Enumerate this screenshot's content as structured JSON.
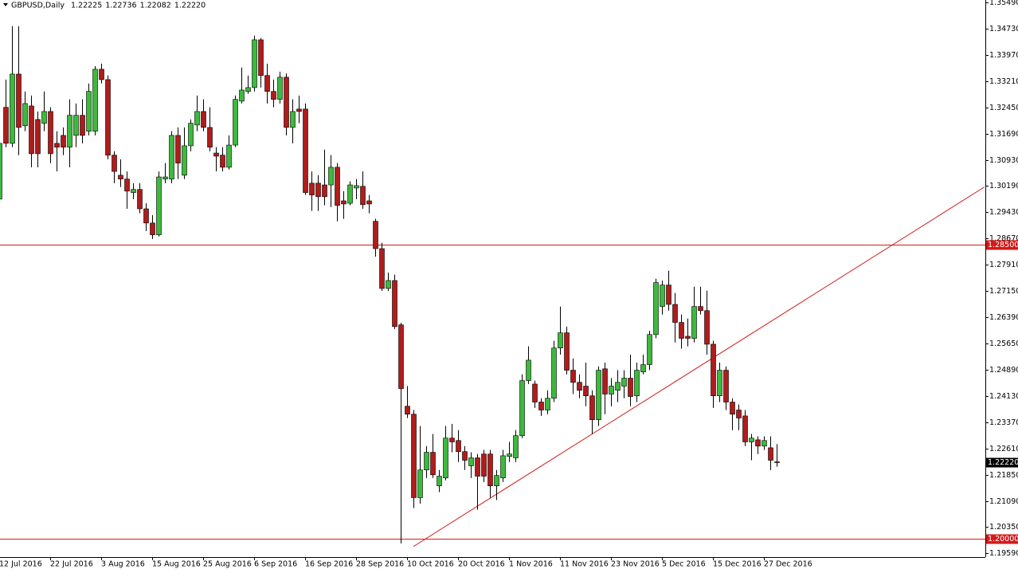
{
  "chart_data": {
    "type": "candlestick",
    "title": "GBPUSD,Daily",
    "title_values": [
      "1.22225",
      "1.22736",
      "1.22082",
      "1.22220"
    ],
    "categories": [
      "12 Jul 2016",
      null,
      null,
      null,
      null,
      null,
      null,
      null,
      "22 Jul 2016",
      null,
      null,
      null,
      null,
      null,
      null,
      null,
      "3 Aug 2016",
      null,
      null,
      null,
      null,
      null,
      null,
      null,
      "15 Aug 2016",
      null,
      null,
      null,
      null,
      null,
      null,
      null,
      "25 Aug 2016",
      null,
      null,
      null,
      null,
      null,
      null,
      null,
      "6 Sep 2016",
      null,
      null,
      null,
      null,
      null,
      null,
      null,
      "16 Sep 2016",
      null,
      null,
      null,
      null,
      null,
      null,
      null,
      "28 Sep 2016",
      null,
      null,
      null,
      null,
      null,
      null,
      null,
      "10 Oct 2016",
      null,
      null,
      null,
      null,
      null,
      null,
      null,
      "20 Oct 2016",
      null,
      null,
      null,
      null,
      null,
      null,
      null,
      "1 Nov 2016",
      null,
      null,
      null,
      null,
      null,
      null,
      null,
      "11 Nov 2016",
      null,
      null,
      null,
      null,
      null,
      null,
      null,
      "23 Nov 2016",
      null,
      null,
      null,
      null,
      null,
      null,
      null,
      "5 Dec 2016",
      null,
      null,
      null,
      null,
      null,
      null,
      null,
      "15 Dec 2016",
      null,
      null,
      null,
      null,
      null,
      null,
      null,
      "27 Dec 2016",
      null,
      null
    ],
    "open": [
      1.2981,
      1.3246,
      1.3142,
      1.3342,
      1.3193,
      1.325,
      1.3211,
      1.32,
      1.3234,
      1.3142,
      1.3165,
      1.3131,
      1.3165,
      1.3223,
      1.3177,
      1.3177,
      1.3356,
      1.3326,
      1.3108,
      1.305,
      1.3039,
      1.3,
      1.3009,
      1.2953,
      1.2912,
      1.2878,
      1.3039,
      1.3039,
      1.3165,
      1.305,
      1.3135,
      1.3195,
      1.3234,
      1.3188,
      1.3114,
      1.3108,
      1.3073,
      1.3137,
      1.3264,
      1.3292,
      1.3303,
      1.3441,
      1.3338,
      1.3292,
      1.3269,
      1.3333,
      1.3188,
      1.3241,
      1.3241,
      1.3027,
      1.3027,
      1.3022,
      1.3022,
      1.3073,
      1.2976,
      1.2969,
      1.3013,
      1.3018,
      1.2976,
      1.2917,
      1.2838,
      1.2723,
      1.2746,
      1.2618,
      1.2383,
      1.236,
      1.2119,
      1.2199,
      1.225,
      1.2153,
      1.2176,
      1.2291,
      1.2284,
      1.2252,
      1.2211,
      1.2234,
      1.2245,
      1.2245,
      1.2153,
      1.2176,
      1.2238,
      1.2234,
      1.2298,
      1.2457,
      1.2447,
      1.2395,
      1.2372,
      1.2406,
      1.2551,
      1.2595,
      1.2487,
      1.2452,
      1.2441,
      1.2413,
      1.2344,
      1.2491,
      1.2418,
      1.2429,
      1.2441,
      1.2464,
      1.2413,
      1.2482,
      1.2503,
      1.259,
      1.2671,
      1.2733,
      1.2677,
      1.2625,
      1.2585,
      1.2579,
      1.2671,
      1.2659,
      1.2562,
      1.2413,
      1.2487,
      1.2395,
      1.2372,
      1.2355,
      1.228,
      1.2286,
      1.2268,
      1.2263,
      1.22225
    ],
    "high": [
      1.3154,
      1.3326,
      1.348,
      1.348,
      1.3292,
      1.328,
      1.3234,
      1.3292,
      1.3246,
      1.3177,
      1.3188,
      1.3269,
      1.3257,
      1.3269,
      1.3315,
      1.3365,
      1.3372,
      1.3338,
      1.3119,
      1.3096,
      1.3061,
      1.3027,
      1.3027,
      1.2969,
      1.2935,
      1.3061,
      1.3085,
      1.3177,
      1.3188,
      1.3188,
      1.3211,
      1.328,
      1.3269,
      1.3246,
      1.3131,
      1.3131,
      1.3165,
      1.328,
      1.3361,
      1.3338,
      1.3453,
      1.3446,
      1.3372,
      1.3326,
      1.3349,
      1.3344,
      1.3269,
      1.328,
      1.3257,
      1.3061,
      1.305,
      1.3124,
      1.3108,
      1.3085,
      1.3004,
      1.3032,
      1.3039,
      1.3061,
      1.2993,
      1.2924,
      1.2855,
      1.2769,
      1.2763,
      1.2624,
      1.2441,
      1.2372,
      1.2326,
      1.2268,
      1.2303,
      1.2199,
      1.2326,
      1.2332,
      1.2314,
      1.2268,
      1.225,
      1.2245,
      1.2257,
      1.2257,
      1.2199,
      1.2257,
      1.228,
      1.2314,
      1.2475,
      1.2556,
      1.2457,
      1.2406,
      1.2429,
      1.2572,
      1.2671,
      1.2613,
      1.2521,
      1.2475,
      1.2509,
      1.2429,
      1.2498,
      1.2509,
      1.2464,
      1.2487,
      1.2487,
      1.2532,
      1.2509,
      1.2532,
      1.2601,
      1.2751,
      1.2746,
      1.2774,
      1.271,
      1.2648,
      1.2636,
      1.2728,
      1.2728,
      1.2717,
      1.2572,
      1.2509,
      1.2498,
      1.2406,
      1.2388,
      1.2372,
      1.2303,
      1.2296,
      1.2296,
      1.2296,
      1.22736
    ],
    "low": [
      1.2976,
      1.3131,
      1.3131,
      1.3108,
      1.3177,
      1.3073,
      1.3073,
      1.3177,
      1.3085,
      1.3061,
      1.3108,
      1.3073,
      1.3131,
      1.3142,
      1.3165,
      1.3165,
      1.3315,
      1.3096,
      1.3027,
      1.3016,
      1.2953,
      1.2981,
      1.294,
      1.2889,
      1.2866,
      1.2873,
      1.3027,
      1.3027,
      1.3039,
      1.3039,
      1.3119,
      1.3177,
      1.3177,
      1.3119,
      1.3061,
      1.3061,
      1.3066,
      1.3131,
      1.3257,
      1.3285,
      1.3292,
      1.3303,
      1.3257,
      1.3246,
      1.3257,
      1.3165,
      1.3142,
      1.32,
      1.2993,
      1.2947,
      1.2947,
      1.2963,
      1.2958,
      1.2917,
      1.2924,
      1.2963,
      1.2981,
      1.2953,
      1.294,
      1.2815,
      1.2716,
      1.2716,
      1.2606,
      1.1987,
      1.2349,
      1.2089,
      1.2102,
      1.2176,
      1.2176,
      1.2135,
      1.2169,
      1.225,
      1.2222,
      1.2199,
      1.2176,
      1.2084,
      1.2164,
      1.2119,
      1.2112,
      1.2164,
      1.2222,
      1.2222,
      1.2291,
      1.2447,
      1.2378,
      1.2355,
      1.236,
      1.2395,
      1.2532,
      1.2475,
      1.2418,
      1.2406,
      1.2383,
      1.2303,
      1.2326,
      1.236,
      1.2383,
      1.2395,
      1.2406,
      1.2383,
      1.2395,
      1.2475,
      1.2487,
      1.2579,
      1.2648,
      1.2659,
      1.2567,
      1.2549,
      1.2556,
      1.2567,
      1.2648,
      1.2532,
      1.2378,
      1.2395,
      1.2372,
      1.2314,
      1.2314,
      1.2268,
      1.2227,
      1.2245,
      1.2257,
      1.2199,
      1.22082
    ],
    "close": [
      1.3142,
      1.3142,
      1.3342,
      1.3188,
      1.3257,
      1.3112,
      1.3112,
      1.3234,
      1.3112,
      1.3131,
      1.3131,
      1.3223,
      1.3223,
      1.3165,
      1.3292,
      1.3356,
      1.3326,
      1.3108,
      1.3061,
      1.3039,
      1.3004,
      1.3009,
      1.2953,
      1.2912,
      1.2878,
      1.3045,
      1.3045,
      1.3165,
      1.3085,
      1.3135,
      1.32,
      1.3234,
      1.3188,
      1.3131,
      1.3105,
      1.3073,
      1.3137,
      1.3269,
      1.3296,
      1.3303,
      1.3441,
      1.3338,
      1.3292,
      1.3269,
      1.3333,
      1.3188,
      1.3234,
      1.3234,
      1.3,
      1.2993,
      1.2988,
      1.2988,
      1.3073,
      1.2963,
      1.2967,
      1.3022,
      1.302,
      1.2965,
      1.2967,
      1.2838,
      1.2723,
      1.2746,
      1.2613,
      1.2434,
      1.236,
      1.2119,
      1.2199,
      1.225,
      1.2185,
      1.2181,
      1.2291,
      1.228,
      1.2252,
      1.2227,
      1.2234,
      1.2181,
      1.2181,
      1.2153,
      1.2183,
      1.224,
      1.2245,
      1.2298,
      1.2457,
      1.2516,
      1.2395,
      1.2372,
      1.2406,
      1.2551,
      1.2595,
      1.2487,
      1.2452,
      1.2429,
      1.2413,
      1.2344,
      1.2487,
      1.2418,
      1.2441,
      1.2452,
      1.2464,
      1.2411,
      1.2487,
      1.2503,
      1.259,
      1.274,
      1.2733,
      1.2677,
      1.2625,
      1.2579,
      1.2579,
      1.2671,
      1.2659,
      1.2562,
      1.2413,
      1.2487,
      1.2395,
      1.236,
      1.2349,
      1.228,
      1.2291,
      1.2268,
      1.2284,
      1.2227,
      1.2222
    ],
    "up_color": "#3cba3c",
    "down_color": "#b01c1c",
    "ylim": [
      1.1959,
      1.3549
    ],
    "yticks": [
      {
        "value": 1.3549,
        "label": "1.35490"
      },
      {
        "value": 1.3473,
        "label": "1.34730"
      },
      {
        "value": 1.3397,
        "label": "1.33970"
      },
      {
        "value": 1.3321,
        "label": "1.33210"
      },
      {
        "value": 1.3245,
        "label": "1.32450"
      },
      {
        "value": 1.3169,
        "label": "1.31690"
      },
      {
        "value": 1.3093,
        "label": "1.30930"
      },
      {
        "value": 1.3019,
        "label": "1.30190"
      },
      {
        "value": 1.2943,
        "label": "1.29430"
      },
      {
        "value": 1.2867,
        "label": "1.28670"
      },
      {
        "value": 1.2791,
        "label": "1.27910"
      },
      {
        "value": 1.2715,
        "label": "1.27150"
      },
      {
        "value": 1.2639,
        "label": "1.26390"
      },
      {
        "value": 1.2565,
        "label": "1.25650"
      },
      {
        "value": 1.2489,
        "label": "1.24890"
      },
      {
        "value": 1.2413,
        "label": "1.24130"
      },
      {
        "value": 1.2337,
        "label": "1.23370"
      },
      {
        "value": 1.2261,
        "label": "1.22610"
      },
      {
        "value": 1.2185,
        "label": "1.21850"
      },
      {
        "value": 1.2109,
        "label": "1.21090"
      },
      {
        "value": 1.2035,
        "label": "1.20350"
      },
      {
        "value": 1.1959,
        "label": "1.19590"
      }
    ],
    "levels": [
      {
        "value": 1.285,
        "label": "1.28500"
      },
      {
        "value": 1.2,
        "label": "1.20000"
      }
    ],
    "level_color": "#d21a1a",
    "current_price": {
      "value": 1.2222,
      "label": "1.22220"
    },
    "trend_line": {
      "x": [
        65,
        154.6
      ],
      "y": [
        1.1978,
        1.3016
      ]
    },
    "grid": false
  }
}
